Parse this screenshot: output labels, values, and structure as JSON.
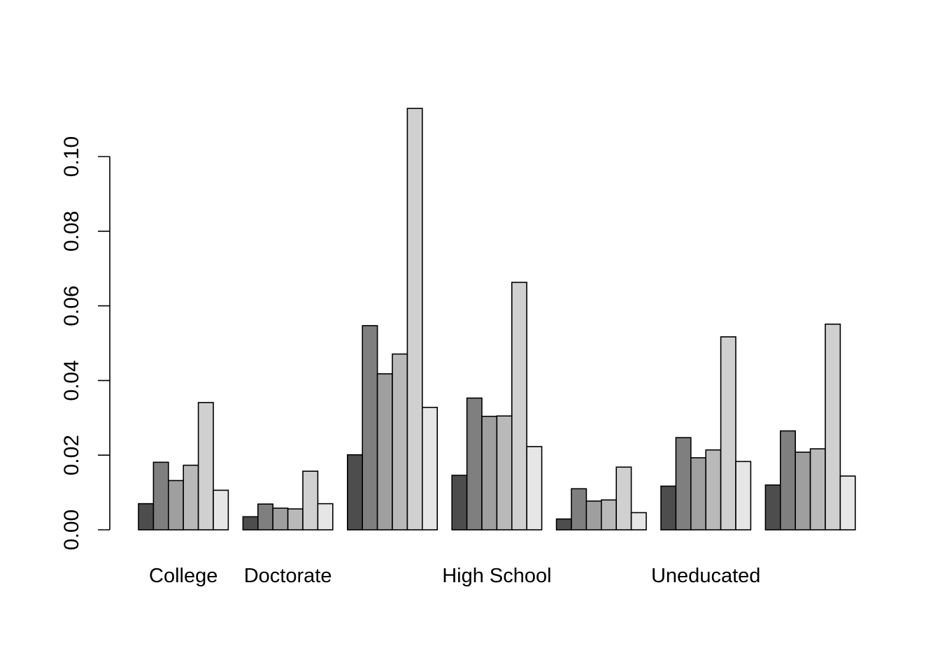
{
  "chart_data": {
    "type": "bar",
    "layout": "grouped",
    "title": "",
    "xlabel": "",
    "ylabel": "",
    "ylim": [
      0,
      0.113
    ],
    "yticks": [
      "0.00",
      "0.02",
      "0.04",
      "0.06",
      "0.08",
      "0.10"
    ],
    "ytick_values": [
      0,
      0.02,
      0.04,
      0.06,
      0.08,
      0.1
    ],
    "categories": [
      "College",
      "Doctorate",
      "",
      "High School",
      "",
      "Uneducated",
      ""
    ],
    "series": [
      {
        "values": [
          0.007,
          0.0035,
          0.0201,
          0.0146,
          0.0029,
          0.0117,
          0.012
        ],
        "color": "#4d4d4d"
      },
      {
        "values": [
          0.0181,
          0.0069,
          0.0547,
          0.0353,
          0.011,
          0.0247,
          0.0265
        ],
        "color": "#7f7f7f"
      },
      {
        "values": [
          0.0132,
          0.0058,
          0.0418,
          0.0304,
          0.0077,
          0.0193,
          0.0208
        ],
        "color": "#9f9f9f"
      },
      {
        "values": [
          0.0173,
          0.0056,
          0.0471,
          0.0305,
          0.008,
          0.0214,
          0.0217
        ],
        "color": "#b9b9b9"
      },
      {
        "values": [
          0.0341,
          0.0157,
          0.1129,
          0.0663,
          0.0168,
          0.0517,
          0.0551
        ],
        "color": "#d0d0d0"
      },
      {
        "values": [
          0.0106,
          0.007,
          0.0328,
          0.0223,
          0.0046,
          0.0183,
          0.0144
        ],
        "color": "#e6e6e6"
      }
    ],
    "grid": false,
    "legend": "none"
  }
}
